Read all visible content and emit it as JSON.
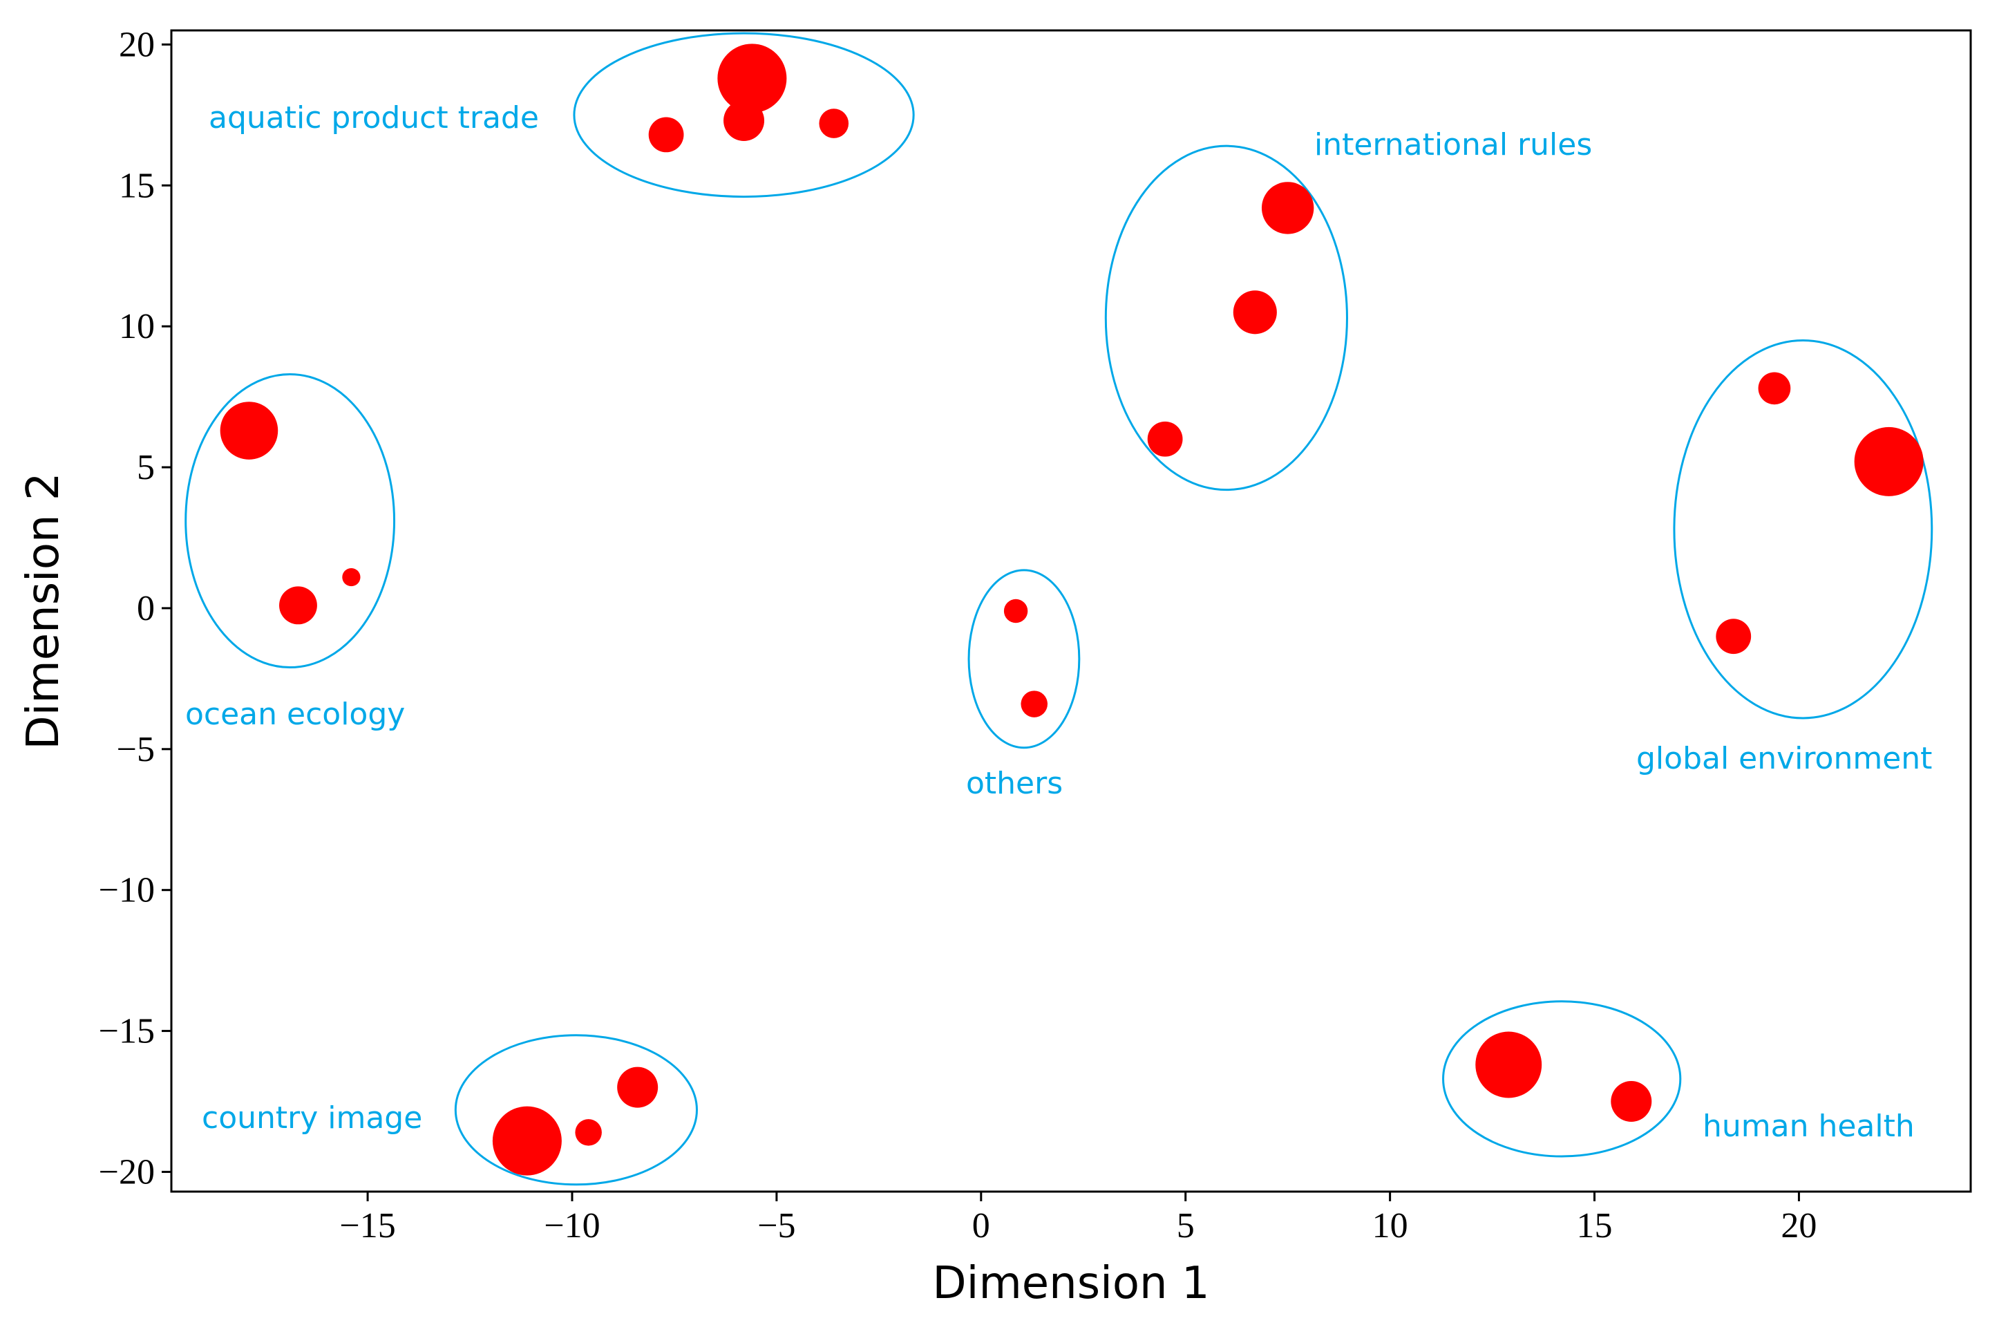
{
  "chart_data": {
    "type": "scatter",
    "title": "",
    "xlabel": "Dimension 1",
    "ylabel": "Dimension 2",
    "xlim": [
      -19.8,
      24.2
    ],
    "ylim": [
      -20.7,
      20.5
    ],
    "xticks": [
      -15,
      -10,
      -5,
      0,
      5,
      10,
      15,
      20
    ],
    "yticks": [
      -20,
      -15,
      -10,
      -5,
      0,
      5,
      10,
      15,
      20
    ],
    "xtick_labels": [
      "−15",
      "−10",
      "−5",
      "0",
      "5",
      "10",
      "15",
      "20"
    ],
    "ytick_labels": [
      "−20",
      "−15",
      "−10",
      "−5",
      "0",
      "5",
      "10",
      "15",
      "20"
    ],
    "grid": false,
    "point_color": "#ff0000",
    "cluster_color": "#00a8e8",
    "clusters": [
      {
        "name": "aquatic product trade",
        "ellipse": {
          "cx": -5.8,
          "cy": 17.5,
          "rx": 4.15,
          "ry": 2.9
        },
        "points": [
          {
            "x": -7.7,
            "y": 16.8,
            "size": 0.4
          },
          {
            "x": -5.8,
            "y": 17.3,
            "size": 0.5
          },
          {
            "x": -5.6,
            "y": 18.8,
            "size": 1.0
          },
          {
            "x": -3.6,
            "y": 17.2,
            "size": 0.3
          }
        ]
      },
      {
        "name": "international rules",
        "ellipse": {
          "cx": 6.0,
          "cy": 10.3,
          "rx": 2.95,
          "ry": 6.1
        },
        "points": [
          {
            "x": 7.5,
            "y": 14.2,
            "size": 0.7
          },
          {
            "x": 6.7,
            "y": 10.5,
            "size": 0.55
          },
          {
            "x": 4.5,
            "y": 6.0,
            "size": 0.4
          }
        ]
      },
      {
        "name": "ocean ecology",
        "ellipse": {
          "cx": -16.9,
          "cy": 3.1,
          "rx": 2.55,
          "ry": 5.2
        },
        "points": [
          {
            "x": -17.9,
            "y": 6.3,
            "size": 0.8
          },
          {
            "x": -16.7,
            "y": 0.1,
            "size": 0.45
          },
          {
            "x": -15.4,
            "y": 1.1,
            "size": 0.1
          }
        ]
      },
      {
        "name": "others",
        "ellipse": {
          "cx": 1.05,
          "cy": -1.8,
          "rx": 1.35,
          "ry": 3.15
        },
        "points": [
          {
            "x": 0.85,
            "y": -0.1,
            "size": 0.2
          },
          {
            "x": 1.3,
            "y": -3.4,
            "size": 0.25
          }
        ]
      },
      {
        "name": "global environment",
        "ellipse": {
          "cx": 20.1,
          "cy": 2.8,
          "rx": 3.15,
          "ry": 6.7
        },
        "points": [
          {
            "x": 19.4,
            "y": 7.8,
            "size": 0.35
          },
          {
            "x": 22.2,
            "y": 5.2,
            "size": 1.0
          },
          {
            "x": 18.4,
            "y": -1.0,
            "size": 0.4
          }
        ]
      },
      {
        "name": "country image",
        "ellipse": {
          "cx": -9.9,
          "cy": -17.8,
          "rx": 2.95,
          "ry": 2.65
        },
        "points": [
          {
            "x": -11.1,
            "y": -18.9,
            "size": 1.0
          },
          {
            "x": -9.6,
            "y": -18.6,
            "size": 0.25
          },
          {
            "x": -8.4,
            "y": -17.0,
            "size": 0.5
          }
        ]
      },
      {
        "name": "human health",
        "ellipse": {
          "cx": 14.2,
          "cy": -16.7,
          "rx": 2.9,
          "ry": 2.75
        },
        "points": [
          {
            "x": 12.9,
            "y": -16.2,
            "size": 0.95
          },
          {
            "x": 15.9,
            "y": -17.5,
            "size": 0.5
          }
        ]
      }
    ]
  }
}
